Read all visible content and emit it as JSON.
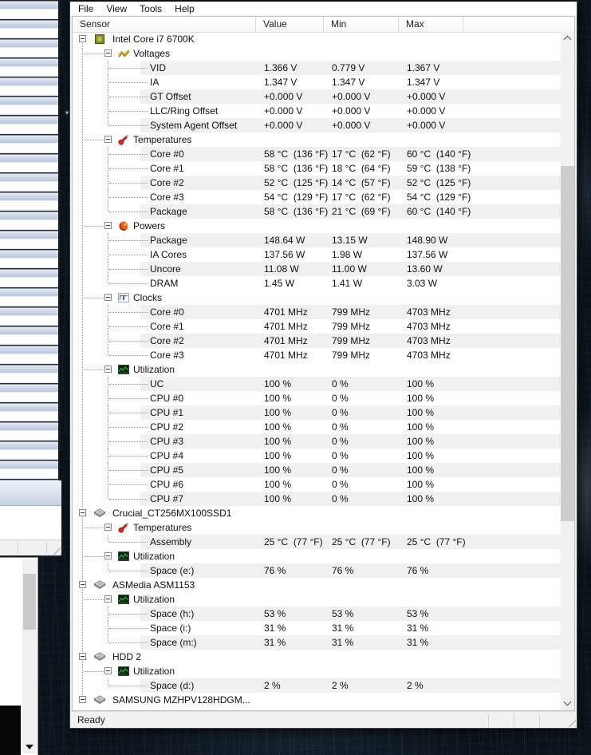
{
  "window": {
    "menu": [
      "File",
      "View",
      "Tools",
      "Help"
    ],
    "columns": [
      "Sensor",
      "Value",
      "Min",
      "Max"
    ],
    "status_text": "Ready"
  },
  "colors": {
    "row_shade": "#f0f0f0",
    "list_background": "#ffffff",
    "desktop_background": "#0c131b",
    "cascade_titlebar_top": "#eef3f9",
    "cascade_titlebar_bottom": "#b6c5d8",
    "scrollbar_thumb": "#cdcdcd"
  },
  "tree": {
    "rows": [
      {
        "type": "device",
        "icon": "cpu-chip-icon",
        "label": "Intel Core i7 6700K"
      },
      {
        "type": "category",
        "icon": "voltage-icon",
        "label": "Voltages"
      },
      {
        "type": "sensor",
        "label": "VID",
        "value": "1.366 V",
        "min": "0.779 V",
        "max": "1.367 V"
      },
      {
        "type": "sensor",
        "label": "IA",
        "value": "1.347 V",
        "min": "1.347 V",
        "max": "1.347 V"
      },
      {
        "type": "sensor",
        "label": "GT Offset",
        "value": "+0.000 V",
        "min": "+0.000 V",
        "max": "+0.000 V"
      },
      {
        "type": "sensor",
        "label": "LLC/Ring Offset",
        "value": "+0.000 V",
        "min": "+0.000 V",
        "max": "+0.000 V"
      },
      {
        "type": "sensor",
        "label": "System Agent Offset",
        "value": "+0.000 V",
        "min": "+0.000 V",
        "max": "+0.000 V"
      },
      {
        "type": "category",
        "icon": "temperature-icon",
        "label": "Temperatures"
      },
      {
        "type": "sensor",
        "label": "Core #0",
        "value": "58 °C  (136 °F)",
        "min": "17 °C  (62 °F)",
        "max": "60 °C  (140 °F)"
      },
      {
        "type": "sensor",
        "label": "Core #1",
        "value": "58 °C  (136 °F)",
        "min": "18 °C  (64 °F)",
        "max": "59 °C  (138 °F)"
      },
      {
        "type": "sensor",
        "label": "Core #2",
        "value": "52 °C  (125 °F)",
        "min": "14 °C  (57 °F)",
        "max": "52 °C  (125 °F)"
      },
      {
        "type": "sensor",
        "label": "Core #3",
        "value": "54 °C  (129 °F)",
        "min": "17 °C  (62 °F)",
        "max": "54 °C  (129 °F)"
      },
      {
        "type": "sensor",
        "label": "Package",
        "value": "58 °C  (136 °F)",
        "min": "21 °C  (69 °F)",
        "max": "60 °C  (140 °F)"
      },
      {
        "type": "category",
        "icon": "power-icon",
        "label": "Powers"
      },
      {
        "type": "sensor",
        "label": "Package",
        "value": "148.64 W",
        "min": "13.15 W",
        "max": "148.90 W"
      },
      {
        "type": "sensor",
        "label": "IA Cores",
        "value": "137.56 W",
        "min": "1.98 W",
        "max": "137.56 W"
      },
      {
        "type": "sensor",
        "label": "Uncore",
        "value": "11.08 W",
        "min": "11.00 W",
        "max": "13.60 W"
      },
      {
        "type": "sensor",
        "label": "DRAM",
        "value": "1.45 W",
        "min": "1.41 W",
        "max": "3.03 W"
      },
      {
        "type": "category",
        "icon": "clock-icon",
        "label": "Clocks"
      },
      {
        "type": "sensor",
        "label": "Core #0",
        "value": "4701 MHz",
        "min": "799 MHz",
        "max": "4703 MHz"
      },
      {
        "type": "sensor",
        "label": "Core #1",
        "value": "4701 MHz",
        "min": "799 MHz",
        "max": "4703 MHz"
      },
      {
        "type": "sensor",
        "label": "Core #2",
        "value": "4701 MHz",
        "min": "799 MHz",
        "max": "4703 MHz"
      },
      {
        "type": "sensor",
        "label": "Core #3",
        "value": "4701 MHz",
        "min": "799 MHz",
        "max": "4703 MHz"
      },
      {
        "type": "category",
        "icon": "utilization-icon",
        "label": "Utilization"
      },
      {
        "type": "sensor",
        "label": "UC",
        "value": "100 %",
        "min": "0 %",
        "max": "100 %"
      },
      {
        "type": "sensor",
        "label": "CPU #0",
        "value": "100 %",
        "min": "0 %",
        "max": "100 %"
      },
      {
        "type": "sensor",
        "label": "CPU #1",
        "value": "100 %",
        "min": "0 %",
        "max": "100 %"
      },
      {
        "type": "sensor",
        "label": "CPU #2",
        "value": "100 %",
        "min": "0 %",
        "max": "100 %"
      },
      {
        "type": "sensor",
        "label": "CPU #3",
        "value": "100 %",
        "min": "0 %",
        "max": "100 %"
      },
      {
        "type": "sensor",
        "label": "CPU #4",
        "value": "100 %",
        "min": "0 %",
        "max": "100 %"
      },
      {
        "type": "sensor",
        "label": "CPU #5",
        "value": "100 %",
        "min": "0 %",
        "max": "100 %"
      },
      {
        "type": "sensor",
        "label": "CPU #6",
        "value": "100 %",
        "min": "0 %",
        "max": "100 %"
      },
      {
        "type": "sensor",
        "label": "CPU #7",
        "value": "100 %",
        "min": "0 %",
        "max": "100 %"
      },
      {
        "type": "device",
        "icon": "drive-icon",
        "label": "Crucial_CT256MX100SSD1"
      },
      {
        "type": "category",
        "icon": "temperature-icon",
        "label": "Temperatures"
      },
      {
        "type": "sensor",
        "label": "Assembly",
        "value": "25 °C  (77 °F)",
        "min": "25 °C  (77 °F)",
        "max": "25 °C  (77 °F)"
      },
      {
        "type": "category",
        "icon": "utilization-icon",
        "label": "Utilization"
      },
      {
        "type": "sensor",
        "label": "Space (e:)",
        "value": "76 %",
        "min": "76 %",
        "max": "76 %"
      },
      {
        "type": "device",
        "icon": "drive-icon",
        "label": "ASMedia ASM1153"
      },
      {
        "type": "category",
        "icon": "utilization-icon",
        "label": "Utilization"
      },
      {
        "type": "sensor",
        "label": "Space (h:)",
        "value": "53 %",
        "min": "53 %",
        "max": "53 %"
      },
      {
        "type": "sensor",
        "label": "Space (i:)",
        "value": "31 %",
        "min": "31 %",
        "max": "31 %"
      },
      {
        "type": "sensor",
        "label": "Space (m:)",
        "value": "31 %",
        "min": "31 %",
        "max": "31 %"
      },
      {
        "type": "device",
        "icon": "drive-icon",
        "label": "HDD 2"
      },
      {
        "type": "category",
        "icon": "utilization-icon",
        "label": "Utilization"
      },
      {
        "type": "sensor",
        "label": "Space (d:)",
        "value": "2 %",
        "min": "2 %",
        "max": "2 %"
      },
      {
        "type": "device",
        "icon": "drive-icon",
        "label": "SAMSUNG MZHPV128HDGM..."
      }
    ]
  }
}
